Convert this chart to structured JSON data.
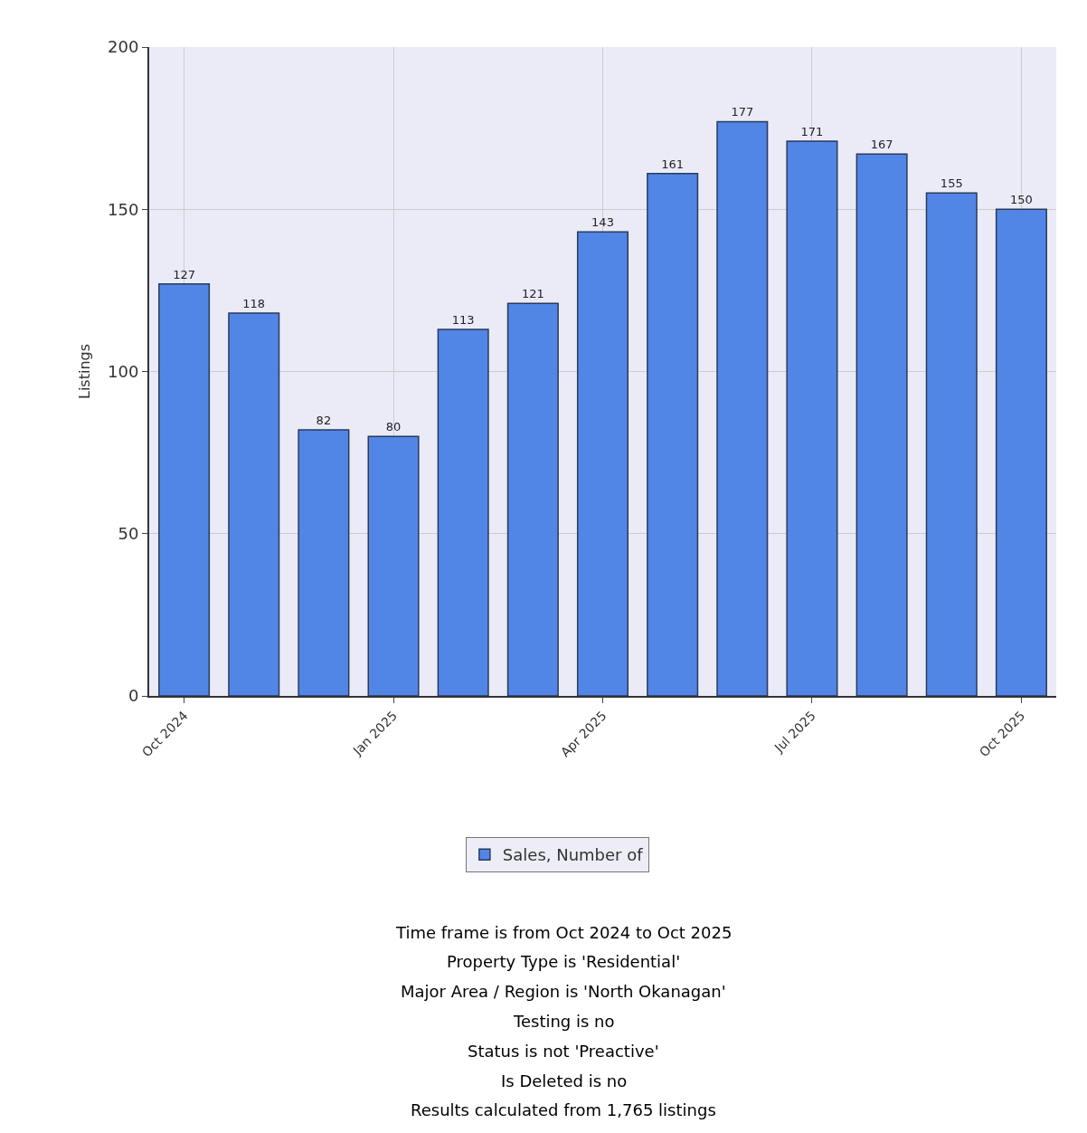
{
  "chart_data": {
    "type": "bar",
    "ylabel": "Listings",
    "categories": [
      "Oct 2024",
      null,
      null,
      "Jan 2025",
      null,
      null,
      "Apr 2025",
      null,
      null,
      "Jul 2025",
      null,
      null,
      "Oct 2025"
    ],
    "series": [
      {
        "name": "Sales, Number of",
        "color": "#5286e6",
        "values": [
          127,
          118,
          82,
          80,
          113,
          121,
          143,
          161,
          177,
          171,
          167,
          155,
          150
        ]
      }
    ],
    "ylim": [
      0,
      200
    ],
    "yticks": [
      0,
      50,
      100,
      150,
      200
    ],
    "grid": true,
    "legend": "bottom",
    "data_labels": true,
    "annotations": [
      "Time frame is from Oct 2024 to Oct 2025",
      "Property Type is 'Residential'",
      "Major Area / Region is 'North Okanagan'",
      "Testing is no",
      "Status is not 'Preactive'",
      "Is Deleted is no",
      "Results calculated from 1,765 listings"
    ]
  }
}
